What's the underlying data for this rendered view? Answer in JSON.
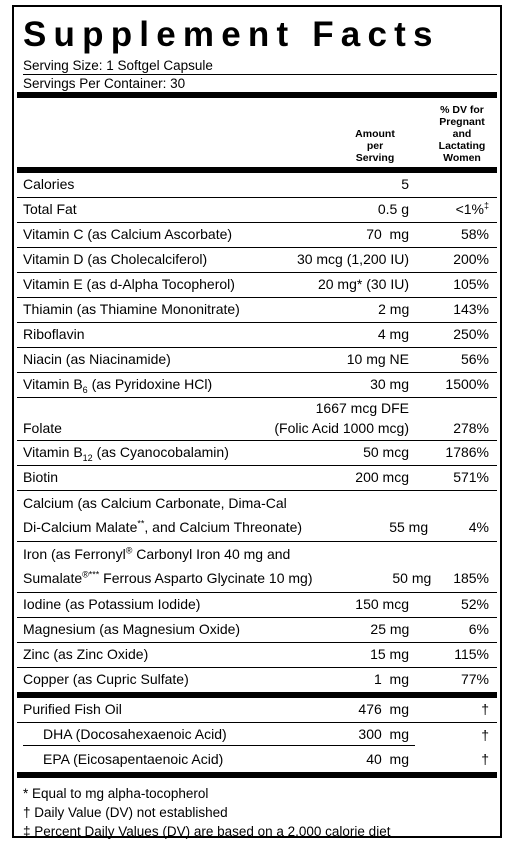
{
  "header": {
    "title": "Supplement Facts",
    "serving_size": "Serving Size: 1 Softgel Capsule",
    "servings_per_container": "Servings Per Container: 30"
  },
  "columns": {
    "amount": [
      "Amount",
      "per",
      "Serving"
    ],
    "dv": [
      "% DV for",
      "Pregnant",
      "and",
      "Lactating",
      "Women"
    ]
  },
  "rows": [
    {
      "name": [
        [
          "Calories"
        ]
      ],
      "amount": [
        "5"
      ]
    },
    {
      "name": [
        [
          "Total Fat"
        ]
      ],
      "amount": [
        "0.5 g"
      ],
      "dv": [
        "<1%",
        {
          "sup": "‡"
        }
      ]
    },
    {
      "name": [
        [
          "Vitamin C (as Calcium Ascorbate)"
        ]
      ],
      "amount": [
        "70  mg"
      ],
      "dv": [
        "58%"
      ]
    },
    {
      "name": [
        [
          "Vitamin D (as Cholecalciferol)"
        ]
      ],
      "amount": [
        "30 mcg (1,200 IU)"
      ],
      "dv": [
        "200%"
      ]
    },
    {
      "name": [
        [
          "Vitamin E (as d-Alpha Tocopherol)"
        ]
      ],
      "amount": [
        "20 mg* (30 IU)"
      ],
      "dv": [
        "105%"
      ]
    },
    {
      "name": [
        [
          "Thiamin (as Thiamine Mononitrate)"
        ]
      ],
      "amount": [
        "2 mg"
      ],
      "dv": [
        "143%"
      ]
    },
    {
      "name": [
        [
          "Riboflavin"
        ]
      ],
      "amount": [
        "4 mg"
      ],
      "dv": [
        "250%"
      ]
    },
    {
      "name": [
        [
          "Niacin (as Niacinamide)"
        ]
      ],
      "amount": [
        "10 mg NE"
      ],
      "dv": [
        "56%"
      ]
    },
    {
      "name": [
        [
          "Vitamin B",
          {
            "sub": "6"
          },
          " (as Pyridoxine HCl)"
        ]
      ],
      "amount": [
        "30 mg"
      ],
      "dv": [
        "1500%"
      ]
    },
    {
      "name": [
        [
          "Folate"
        ]
      ],
      "amount": [
        "1667 mcg DFE",
        "(Folic Acid 1000 mcg)"
      ],
      "dv": [
        "278%"
      ]
    },
    {
      "name": [
        [
          "Vitamin B",
          {
            "sub": "12"
          },
          " (as Cyanocobalamin)"
        ]
      ],
      "amount": [
        "50 mcg"
      ],
      "dv": [
        "1786%"
      ]
    },
    {
      "name": [
        [
          "Biotin"
        ]
      ],
      "amount": [
        "200 mcg"
      ],
      "dv": [
        "571%"
      ]
    },
    {
      "name": [
        [
          "Calcium (as Calcium Carbonate, Dima-Cal"
        ],
        [
          "Di-Calcium Malate",
          {
            "sup": "**"
          },
          ", and Calcium Threonate)"
        ]
      ],
      "amount": [
        "55 mg"
      ],
      "dv": [
        "4%"
      ]
    },
    {
      "name": [
        [
          "Iron (as Ferronyl",
          {
            "sup": "®"
          },
          " Carbonyl Iron 40 mg and"
        ],
        [
          "Sumalate",
          {
            "sup": "®***"
          },
          " Ferrous Asparto Glycinate 10 mg)"
        ]
      ],
      "amount": [
        "50 mg"
      ],
      "dv": [
        "185%"
      ]
    },
    {
      "name": [
        [
          "Iodine (as Potassium Iodide)"
        ]
      ],
      "amount": [
        "150 mcg"
      ],
      "dv": [
        "52%"
      ]
    },
    {
      "name": [
        [
          "Magnesium  (as Magnesium Oxide)"
        ]
      ],
      "amount": [
        "25 mg"
      ],
      "dv": [
        "6%"
      ]
    },
    {
      "name": [
        [
          "Zinc (as Zinc Oxide)"
        ]
      ],
      "amount": [
        "15 mg"
      ],
      "dv": [
        "115%"
      ]
    },
    {
      "name": [
        [
          "Copper (as Cupric Sulfate)"
        ]
      ],
      "amount": [
        "1  mg"
      ],
      "dv": [
        "77%"
      ]
    }
  ],
  "other_rows": [
    {
      "name": [
        [
          "Purified Fish Oil"
        ]
      ],
      "amount": [
        "476  mg"
      ],
      "dv": [
        "†"
      ]
    },
    {
      "name": [
        [
          "DHA (Docosahexaenoic Acid)"
        ]
      ],
      "amount": [
        "300  mg"
      ],
      "dv": [
        "†"
      ],
      "indent": true
    },
    {
      "name": [
        [
          "EPA (Eicosapentaenoic Acid)"
        ]
      ],
      "amount": [
        "40  mg"
      ],
      "dv": [
        "†"
      ],
      "indent": true
    }
  ],
  "footnotes": [
    "* Equal to mg alpha-tocopherol",
    "† Daily Value (DV) not established",
    "‡ Percent Daily Values (DV) are based on a 2,000 calorie diet"
  ]
}
